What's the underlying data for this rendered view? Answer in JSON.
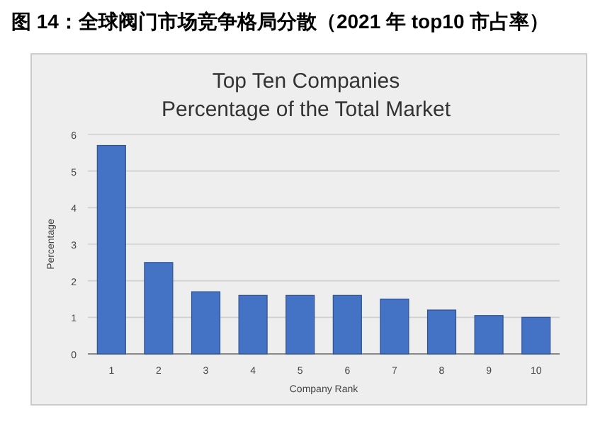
{
  "chart_data": {
    "type": "bar",
    "title": "图 14：全球阀门市场竞争格局分散（2021 年 top10 市占率）",
    "subtitle": "Top Ten Companies\nPercentage of the Total Market",
    "categories": [
      "1",
      "2",
      "3",
      "4",
      "5",
      "6",
      "7",
      "8",
      "9",
      "10"
    ],
    "values": [
      5.7,
      2.5,
      1.7,
      1.6,
      1.6,
      1.6,
      1.5,
      1.2,
      1.05,
      1.0
    ],
    "color": "#4472c4",
    "xlabel": "Company Rank",
    "ylabel": "Percentage",
    "ylim": [
      0,
      6
    ],
    "yticks": [
      0,
      1,
      2,
      3,
      4,
      5,
      6
    ],
    "grid": "y"
  }
}
